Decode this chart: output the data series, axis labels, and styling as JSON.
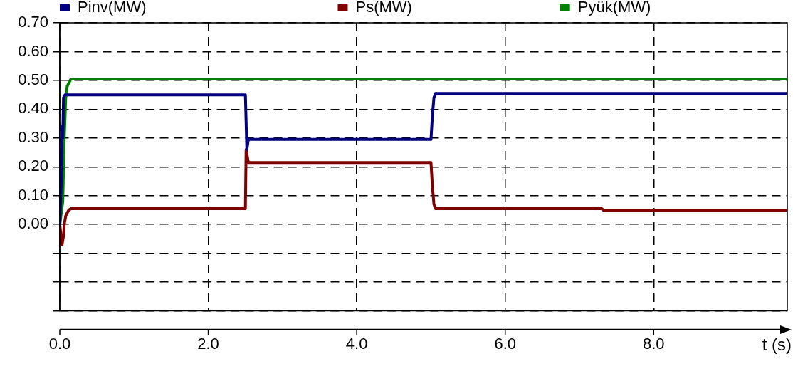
{
  "chart_data": {
    "type": "line",
    "xlabel": "t (s)",
    "series": [
      {
        "name": "Pinv(MW)",
        "color": "#000080",
        "x": [
          0,
          0.02,
          0.03,
          0.04,
          0.05,
          0.07,
          0.1,
          1.5,
          2.5,
          2.52,
          2.54,
          5.0,
          5.02,
          5.04,
          5.06,
          9.8
        ],
        "values": [
          0,
          0.15,
          0.34,
          0.3,
          0.44,
          0.45,
          0.45,
          0.45,
          0.45,
          0.26,
          0.295,
          0.295,
          0.38,
          0.44,
          0.455,
          0.455
        ]
      },
      {
        "name": "Ps(MW)",
        "color": "#800000",
        "x": [
          0,
          0.02,
          0.03,
          0.05,
          0.06,
          0.08,
          0.1,
          0.12,
          0.15,
          2.5,
          2.51,
          2.54,
          5.0,
          5.02,
          5.04,
          5.06,
          7.3,
          7.32,
          9.8
        ],
        "values": [
          0,
          -0.05,
          -0.07,
          -0.04,
          0,
          0.03,
          0.04,
          0.05,
          0.055,
          0.055,
          0.26,
          0.215,
          0.215,
          0.13,
          0.07,
          0.055,
          0.055,
          0.05,
          0.05
        ]
      },
      {
        "name": "Pyük(MW)",
        "color": "#008000",
        "x": [
          0,
          0.04,
          0.06,
          0.08,
          0.1,
          0.12,
          0.15,
          9.8
        ],
        "values": [
          0,
          0.08,
          0.3,
          0.44,
          0.48,
          0.49,
          0.505,
          0.505
        ]
      }
    ],
    "xlim": [
      0,
      9.8
    ],
    "xticks": [
      {
        "value": 0,
        "label": "0.0"
      },
      {
        "value": 2,
        "label": "2.0"
      },
      {
        "value": 4,
        "label": "4.0"
      },
      {
        "value": 6,
        "label": "6.0"
      },
      {
        "value": 8,
        "label": "8.0"
      }
    ],
    "ylim": [
      -0.3,
      0.7
    ],
    "yticks": [
      {
        "value": -0.3,
        "label": null
      },
      {
        "value": -0.2,
        "label": null
      },
      {
        "value": -0.1,
        "label": null
      },
      {
        "value": 0,
        "label": "0.00"
      },
      {
        "value": 0.1,
        "label": "0.10"
      },
      {
        "value": 0.2,
        "label": "0.20"
      },
      {
        "value": 0.3,
        "label": "0.30"
      },
      {
        "value": 0.4,
        "label": "0.40"
      },
      {
        "value": 0.5,
        "label": "0.50"
      },
      {
        "value": 0.6,
        "label": "0.60"
      },
      {
        "value": 0.7,
        "label": "0.70"
      }
    ],
    "grid": true,
    "legend": "top",
    "marker": "none",
    "line_style": "solid"
  }
}
